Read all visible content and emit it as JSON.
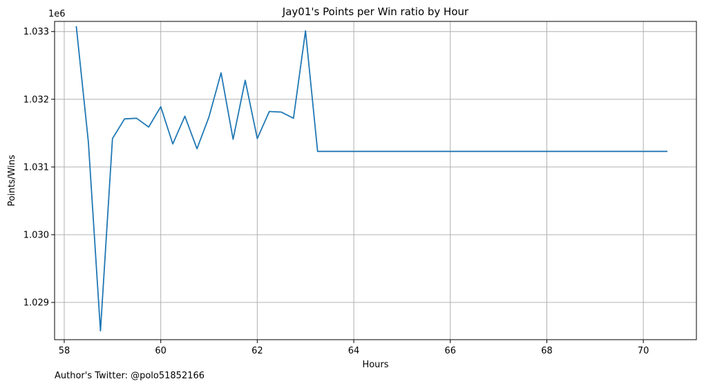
{
  "chart_data": {
    "type": "line",
    "title": "Jay01's Points per Win ratio by Hour",
    "xlabel": "Hours",
    "ylabel": "Points/Wins",
    "y_offset_label": "1e6",
    "xlim": [
      57.8,
      71.1
    ],
    "ylim": [
      1.02845,
      1.03315
    ],
    "x_ticks": [
      58,
      60,
      62,
      64,
      66,
      68,
      70
    ],
    "x_tick_labels": [
      "58",
      "60",
      "62",
      "64",
      "66",
      "68",
      "70"
    ],
    "y_ticks": [
      1.029,
      1.03,
      1.031,
      1.032,
      1.033
    ],
    "y_tick_labels": [
      "1.029",
      "1.030",
      "1.031",
      "1.032",
      "1.033"
    ],
    "grid": true,
    "line_color": "#1f77b4",
    "series": [
      {
        "x": [
          58.25,
          58.5,
          58.75,
          59.0,
          59.25,
          59.5,
          59.75,
          60.0,
          60.25,
          60.5,
          60.75,
          61.0,
          61.25,
          61.5,
          61.75,
          62.0,
          62.25,
          62.5,
          62.75,
          63.0,
          63.25,
          70.5
        ],
        "y": [
          1.03308,
          1.03137,
          1.02858,
          1.03142,
          1.03171,
          1.03172,
          1.03159,
          1.03189,
          1.03134,
          1.03175,
          1.03127,
          1.03174,
          1.03239,
          1.03141,
          1.03228,
          1.03142,
          1.03182,
          1.03181,
          1.03172,
          1.03301,
          1.03123,
          1.03123
        ]
      }
    ]
  },
  "footnote": "Author's Twitter: @polo51852166"
}
